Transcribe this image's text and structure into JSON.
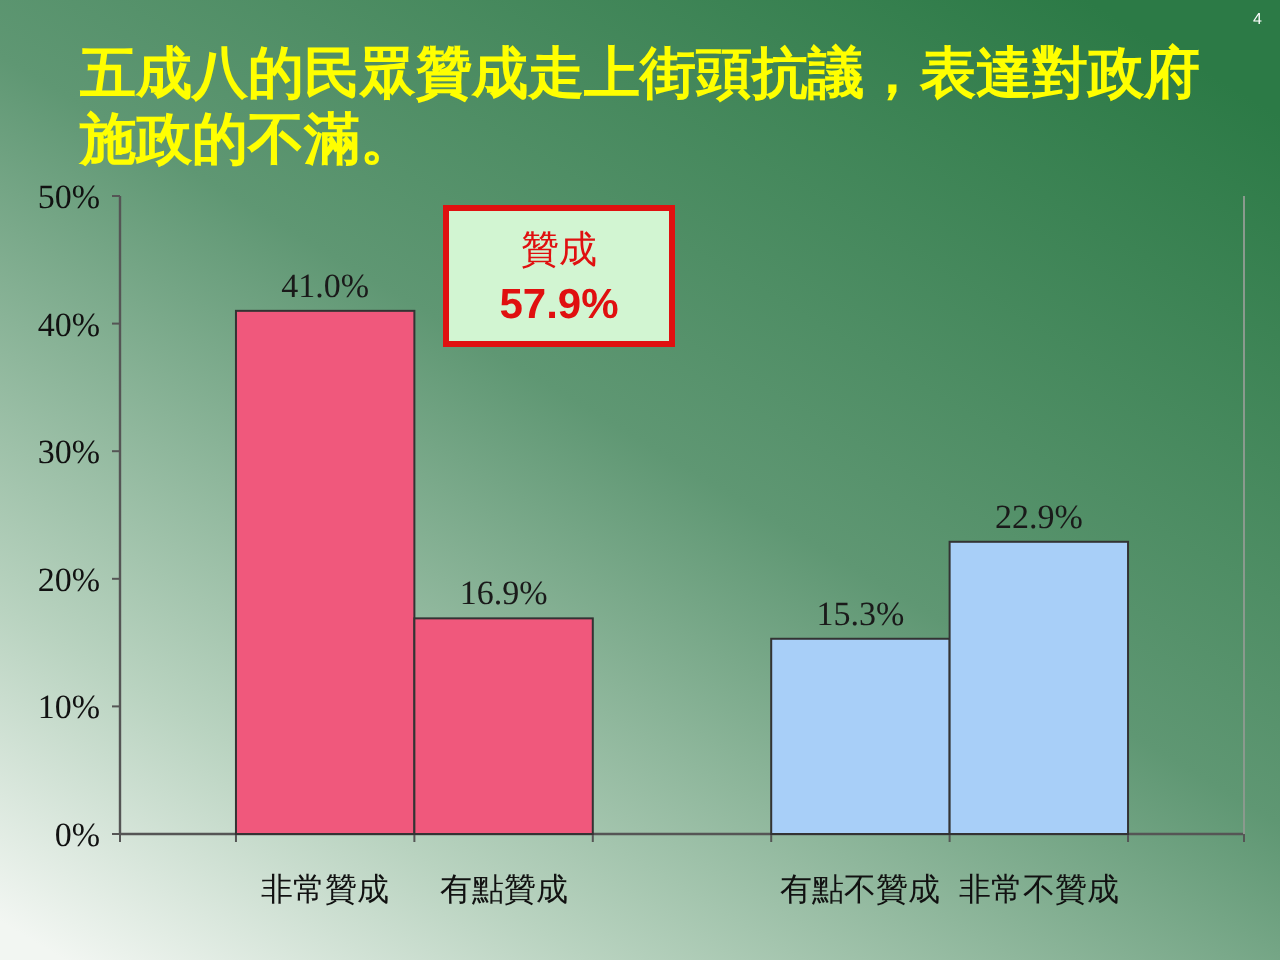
{
  "chart_data": {
    "type": "bar",
    "title": "五成八的民眾贊成走上街頭抗議，表達對政府施政的不滿。",
    "categories": [
      "非常贊成",
      "有點贊成",
      null,
      "有點不贊成",
      "非常不贊成"
    ],
    "values": [
      41.0,
      16.9,
      null,
      15.3,
      22.9
    ],
    "colors": [
      "#f0587c",
      "#f0587c",
      null,
      "#a8cff8",
      "#a8cff8"
    ],
    "value_labels": [
      "41.0%",
      "16.9%",
      null,
      "15.3%",
      "22.9%"
    ],
    "ylim": [
      0,
      50
    ],
    "yticks": [
      {
        "value": 0,
        "label": "0%"
      },
      {
        "value": 10,
        "label": "10%"
      },
      {
        "value": 20,
        "label": "20%"
      },
      {
        "value": 30,
        "label": "30%"
      },
      {
        "value": 40,
        "label": "40%"
      },
      {
        "value": 50,
        "label": "50%"
      }
    ],
    "annotations": [
      "贊成",
      "57.9%",
      "4"
    ]
  }
}
